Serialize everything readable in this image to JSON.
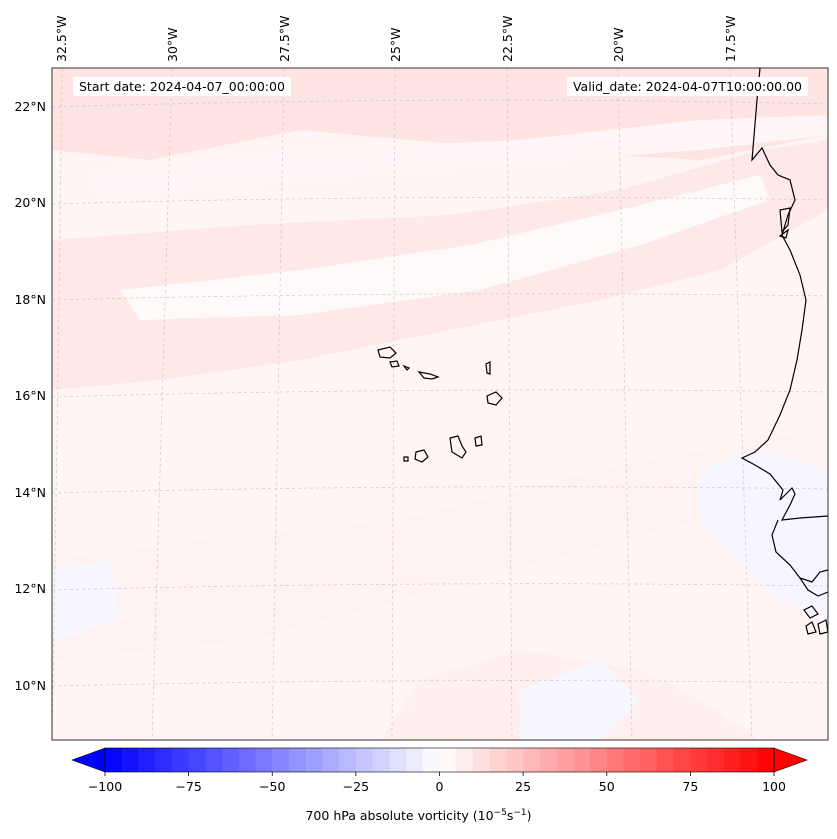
{
  "map": {
    "type": "contourf-map",
    "region": "Eastern tropical Atlantic / West Africa coast",
    "start_date_text": "Start date: 2024-04-07_00:00:00",
    "valid_date_text": "Valid_date: 2024-04-07T10:00:00.00",
    "lon_labels": [
      "32.5°W",
      "30°W",
      "27.5°W",
      "25°W",
      "22.5°W",
      "20°W",
      "17.5°W"
    ],
    "lat_labels": [
      "22°N",
      "20°N",
      "18°N",
      "16°N",
      "14°N",
      "12°N",
      "10°N"
    ],
    "field": "700 hPa absolute vorticity",
    "units_base": "(10",
    "units_exp1": "−5",
    "units_mid": "s",
    "units_exp2": "−1",
    "units_close": ")",
    "gridlines": true
  },
  "colorbar": {
    "cmap": "bwr",
    "vmin": -100,
    "vmax": 100,
    "n_levels": 40,
    "extend": "both",
    "tick_labels": [
      "−100",
      "−75",
      "−50",
      "−25",
      "0",
      "25",
      "50",
      "75",
      "100"
    ],
    "tick_values": [
      -100,
      -75,
      -50,
      -25,
      0,
      25,
      50,
      75,
      100
    ]
  },
  "colors": {
    "background_field": "#fff5f5",
    "band_light_red": "#ffe6e6",
    "band_white": "#fffafa",
    "patch_light_blue": "#f3f5ff",
    "coastline": "#000000",
    "gridline": "#c8c8c8"
  }
}
